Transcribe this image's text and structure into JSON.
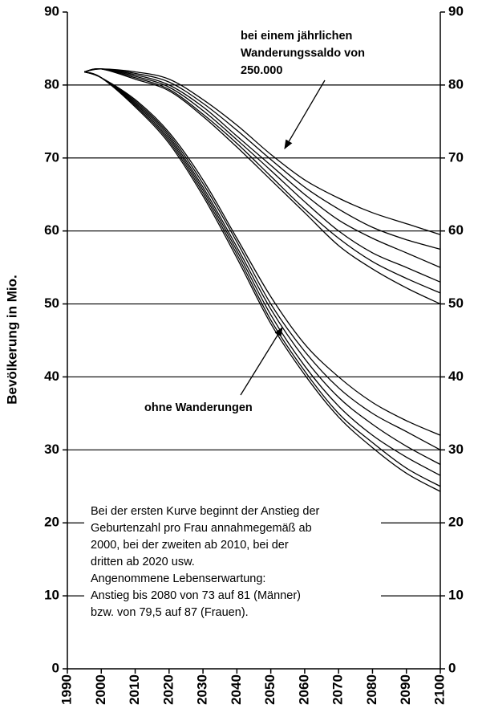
{
  "chart_data": {
    "type": "line",
    "y_label": "Bevölkerung in Mio.",
    "x": [
      1995,
      2000,
      2010,
      2020,
      2030,
      2040,
      2050,
      2060,
      2070,
      2080,
      2090,
      2100
    ],
    "xlim": [
      1990,
      2100
    ],
    "xticks": [
      1990,
      2000,
      2010,
      2020,
      2030,
      2040,
      2050,
      2060,
      2070,
      2080,
      2090,
      2100
    ],
    "ylim": [
      0,
      90
    ],
    "yticks": [
      0,
      10,
      20,
      30,
      40,
      50,
      60,
      70,
      80,
      90
    ],
    "grid": true,
    "series": [
      {
        "color": "#000000",
        "values": [
          81.8,
          82.2,
          81.8,
          80.8,
          78,
          74.5,
          70.5,
          67,
          64.5,
          62.5,
          61,
          59.5
        ]
      },
      {
        "color": "#000000",
        "values": [
          81.8,
          82.2,
          81.6,
          80.4,
          77.5,
          73.8,
          69.8,
          66,
          63,
          60.5,
          58.8,
          57.5
        ]
      },
      {
        "color": "#000000",
        "values": [
          81.8,
          82.2,
          81.4,
          80,
          77,
          73,
          69,
          65,
          61.5,
          59,
          57,
          55
        ]
      },
      {
        "color": "#000000",
        "values": [
          81.8,
          82.2,
          81.2,
          79.7,
          76.5,
          72.5,
          68.3,
          64,
          60,
          57,
          55,
          53
        ]
      },
      {
        "color": "#000000",
        "values": [
          81.8,
          82.2,
          81,
          79.4,
          76,
          72,
          67.5,
          63,
          59,
          55.8,
          53.5,
          51.5
        ]
      },
      {
        "color": "#000000",
        "values": [
          81.8,
          82.2,
          80.8,
          79.2,
          75.7,
          71.5,
          67,
          62.5,
          58,
          54.8,
          52.2,
          50
        ]
      },
      {
        "color": "#000000",
        "values": [
          81.8,
          81,
          78,
          73.5,
          67,
          59,
          51,
          44.5,
          40,
          36.5,
          34,
          32
        ]
      },
      {
        "color": "#000000",
        "values": [
          81.8,
          81,
          77.8,
          73.2,
          66.5,
          58.5,
          50,
          43.5,
          38.5,
          35,
          32.5,
          30
        ]
      },
      {
        "color": "#000000",
        "values": [
          81.8,
          81,
          77.6,
          72.9,
          66,
          57.8,
          49.3,
          42.5,
          37.2,
          33.5,
          30.5,
          28
        ]
      },
      {
        "color": "#000000",
        "values": [
          81.8,
          81,
          77.4,
          72.6,
          65.6,
          57.3,
          48.5,
          41.5,
          36,
          32,
          29,
          26.5
        ]
      },
      {
        "color": "#000000",
        "values": [
          81.8,
          81,
          77.2,
          72.3,
          65.2,
          56.8,
          47.8,
          40.8,
          35,
          31,
          27.5,
          25
        ]
      },
      {
        "color": "#000000",
        "values": [
          81.8,
          81,
          77,
          72,
          64.8,
          56.3,
          47.3,
          40.3,
          34.5,
          30.3,
          26.8,
          24.3
        ]
      }
    ],
    "annotations": [
      {
        "lines": [
          "bei einem jährlichen",
          "Wanderungssaldo von",
          "250.000"
        ]
      },
      {
        "lines": [
          "ohne Wanderungen"
        ]
      },
      {
        "lines": [
          "Bei der ersten Kurve beginnt der Anstieg der",
          "Geburtenzahl pro Frau annahmegemäß ab",
          "2000, bei der zweiten ab 2010, bei der",
          "dritten ab 2020 usw.",
          "Angenommene Lebenserwartung:",
          "Anstieg bis 2080 von 73 auf 81 (Männer)",
          "bzw. von 79,5 auf 87 (Frauen)."
        ]
      }
    ]
  }
}
